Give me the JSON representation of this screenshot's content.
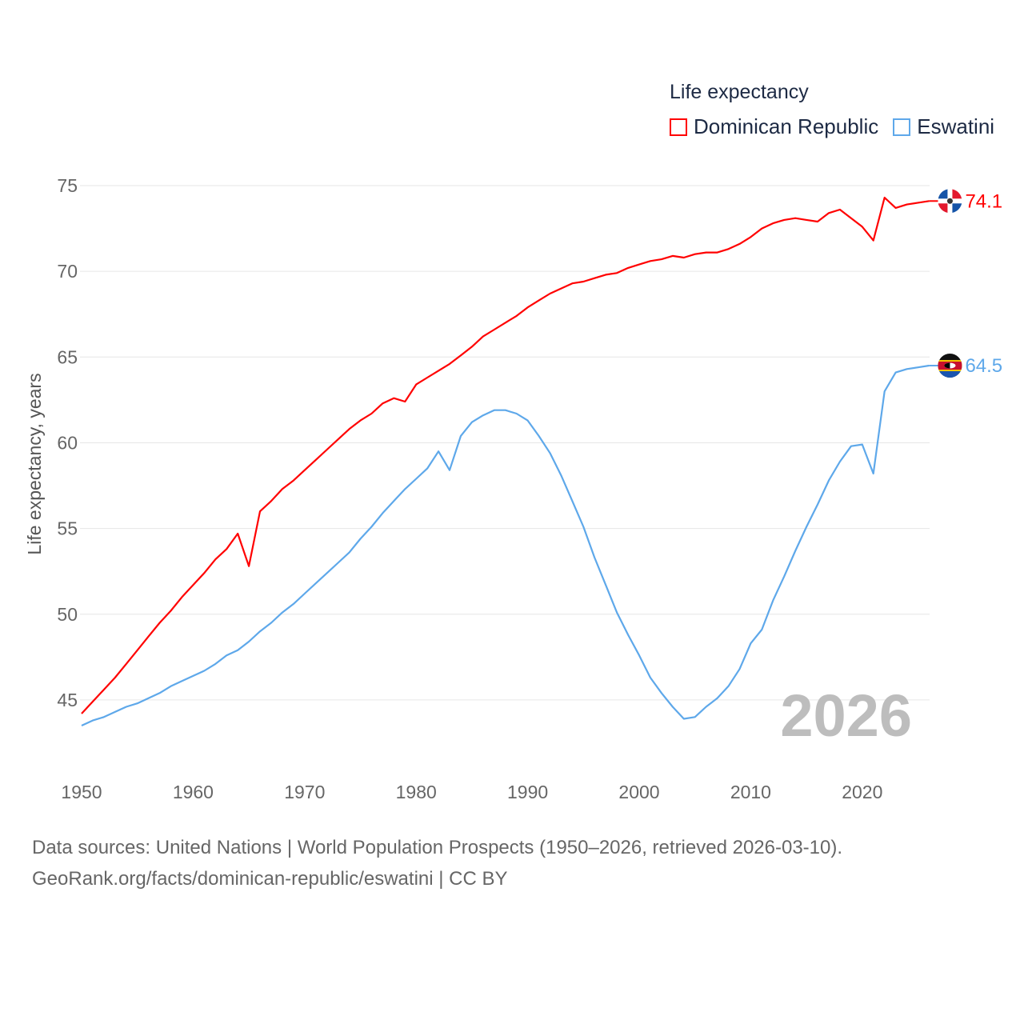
{
  "chart_data": {
    "type": "line",
    "legend_title": "Life expectancy",
    "ylabel": "Life expectancy, years",
    "xlabel": "",
    "xlim": [
      1950,
      2026
    ],
    "ylim": [
      42.5,
      76
    ],
    "yticks": [
      45,
      50,
      55,
      60,
      65,
      70,
      75
    ],
    "xticks": [
      1950,
      1960,
      1970,
      1980,
      1990,
      2000,
      2010,
      2020
    ],
    "grid": true,
    "legend_position": "top-right",
    "year_watermark": "2026",
    "x_start": 1950,
    "series": [
      {
        "name": "Dominican Republic",
        "color": "#ff0000",
        "end_label": "74.1",
        "values": [
          44.2,
          44.9,
          45.6,
          46.3,
          47.1,
          47.9,
          48.7,
          49.5,
          50.2,
          51.0,
          51.7,
          52.4,
          53.2,
          53.8,
          54.7,
          52.8,
          56.0,
          56.6,
          57.3,
          57.8,
          58.4,
          59.0,
          59.6,
          60.2,
          60.8,
          61.3,
          61.7,
          62.3,
          62.6,
          62.4,
          63.4,
          63.8,
          64.2,
          64.6,
          65.1,
          65.6,
          66.2,
          66.6,
          67.0,
          67.4,
          67.9,
          68.3,
          68.7,
          69.0,
          69.3,
          69.4,
          69.6,
          69.8,
          69.9,
          70.2,
          70.4,
          70.6,
          70.7,
          70.9,
          70.8,
          71.0,
          71.1,
          71.1,
          71.3,
          71.6,
          72.0,
          72.5,
          72.8,
          73.0,
          73.1,
          73.0,
          72.9,
          73.4,
          73.6,
          73.1,
          72.6,
          71.8,
          74.3,
          73.7,
          73.9,
          74.0,
          74.1
        ]
      },
      {
        "name": "Eswatini",
        "color": "#5ea8ea",
        "end_label": "64.5",
        "values": [
          43.5,
          43.8,
          44.0,
          44.3,
          44.6,
          44.8,
          45.1,
          45.4,
          45.8,
          46.1,
          46.4,
          46.7,
          47.1,
          47.6,
          47.9,
          48.4,
          49.0,
          49.5,
          50.1,
          50.6,
          51.2,
          51.8,
          52.4,
          53.0,
          53.6,
          54.4,
          55.1,
          55.9,
          56.6,
          57.3,
          57.9,
          58.5,
          59.5,
          58.4,
          60.4,
          61.2,
          61.6,
          61.9,
          61.9,
          61.7,
          61.3,
          60.4,
          59.4,
          58.1,
          56.6,
          55.1,
          53.3,
          51.7,
          50.1,
          48.8,
          47.6,
          46.3,
          45.4,
          44.6,
          43.9,
          44.0,
          44.6,
          45.1,
          45.8,
          46.8,
          48.3,
          49.1,
          50.8,
          52.2,
          53.7,
          55.1,
          56.4,
          57.8,
          58.9,
          59.8,
          59.9,
          58.2,
          63.0,
          64.1,
          64.3,
          64.4,
          64.5
        ]
      }
    ]
  },
  "footer": {
    "source": "Data sources: United Nations | World Population Prospects (1950–2026, retrieved 2026-03-10).",
    "link": "GeoRank.org/facts/dominican-republic/eswatini | CC BY"
  }
}
